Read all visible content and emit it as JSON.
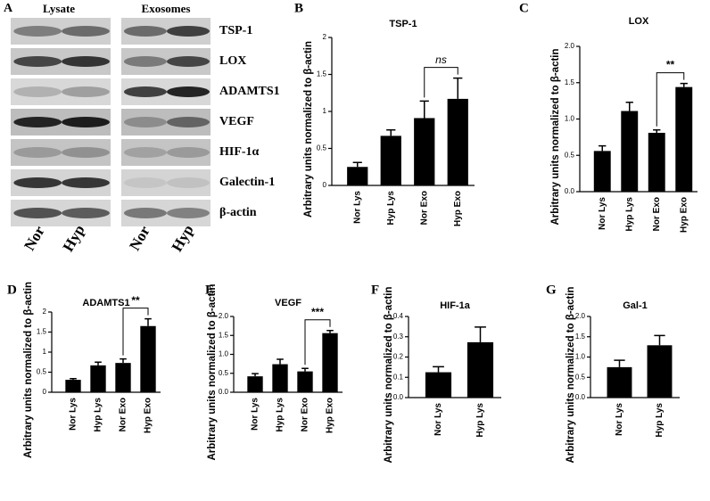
{
  "panel_a": {
    "label": "A",
    "column_headers": [
      "Lysate",
      "Exosomes"
    ],
    "proteins": [
      "TSP-1",
      "LOX",
      "ADAMTS1",
      "VEGF",
      "HIF-1α",
      "Galectin-1",
      "β-actin"
    ],
    "lane_labels": [
      "Nor",
      "Hyp",
      "Nor",
      "Hyp"
    ]
  },
  "chart_data": [
    {
      "type": "bar",
      "panel": "B",
      "title": "TSP-1",
      "y_label": "Arbitrary units normalized to β-actin",
      "categories": [
        "Nor Lys",
        "Hyp Lys",
        "Nor Exo",
        "Hyp Exo"
      ],
      "values": [
        0.25,
        0.67,
        0.91,
        1.17
      ],
      "errors": [
        0.06,
        0.08,
        0.23,
        0.28
      ],
      "color": "#000000",
      "ylim": [
        0,
        2
      ],
      "yticks": [
        0,
        0.5,
        1,
        1.5,
        2
      ],
      "comparison": {
        "label": "ns",
        "between": [
          "Nor Exo",
          "Hyp Exo"
        ],
        "italic": true
      }
    },
    {
      "type": "bar",
      "panel": "C",
      "title": "LOX",
      "y_label": "Arbitrary units normalized to β-actin",
      "categories": [
        "Nor Lys",
        "Hyp Lys",
        "Nor Exo",
        "Hyp Exo"
      ],
      "values": [
        0.56,
        1.11,
        0.81,
        1.44
      ],
      "errors": [
        0.07,
        0.12,
        0.04,
        0.05
      ],
      "color": "#000000",
      "ylim": [
        0,
        2
      ],
      "yticks": [
        {
          "value": 0,
          "label": "0.0"
        },
        {
          "value": 0.5,
          "label": "0.5"
        },
        {
          "value": 1,
          "label": "1.0"
        },
        {
          "value": 1.5,
          "label": "1.5"
        },
        {
          "value": 2,
          "label": "2.0"
        }
      ],
      "comparison": {
        "label": "**",
        "between": [
          "Nor Exo",
          "Hyp Exo"
        ],
        "italic": false
      }
    },
    {
      "type": "bar",
      "panel": "D",
      "title": "ADAMTS1",
      "y_label": "Arbitrary units normalized to β-actin",
      "categories": [
        "Nor Lys",
        "Hyp Lys",
        "Nor Exo",
        "Hyp Exo"
      ],
      "values": [
        0.31,
        0.67,
        0.73,
        1.65
      ],
      "errors": [
        0.03,
        0.08,
        0.1,
        0.18
      ],
      "color": "#000000",
      "ylim": [
        0,
        2
      ],
      "yticks": [
        0,
        0.5,
        1,
        1.5,
        2
      ],
      "comparison": {
        "label": "**",
        "between": [
          "Nor Exo",
          "Hyp Exo"
        ],
        "italic": false
      }
    },
    {
      "type": "bar",
      "panel": "E",
      "title": "VEGF",
      "y_label": "Arbitrary units normalized to β-actin",
      "categories": [
        "Nor Lys",
        "Hyp Lys",
        "Nor Exo",
        "Hyp Exo"
      ],
      "values": [
        0.42,
        0.74,
        0.55,
        1.56
      ],
      "errors": [
        0.07,
        0.13,
        0.08,
        0.07
      ],
      "color": "#000000",
      "ylim": [
        0,
        2
      ],
      "yticks": [
        {
          "value": 0,
          "label": "0.0"
        },
        {
          "value": 0.5,
          "label": "0.5"
        },
        {
          "value": 1,
          "label": "1.0"
        },
        {
          "value": 1.5,
          "label": "1.5"
        },
        {
          "value": 2,
          "label": "2.0"
        }
      ],
      "comparison": {
        "label": "***",
        "between": [
          "Nor Exo",
          "Hyp Exo"
        ],
        "italic": false
      }
    },
    {
      "type": "bar",
      "panel": "F",
      "title": "HIF-1a",
      "y_label": "Arbitrary units normalized to β-actin",
      "categories": [
        "Nor Lys",
        "Hyp Lys"
      ],
      "values": [
        0.125,
        0.273
      ],
      "errors": [
        0.027,
        0.075
      ],
      "color": "#000000",
      "ylim": [
        0,
        0.4
      ],
      "yticks": [
        {
          "value": 0,
          "label": "0.0"
        },
        0.1,
        0.2,
        0.3,
        0.4
      ]
    },
    {
      "type": "bar",
      "panel": "G",
      "title": "Gal-1",
      "y_label": "Arbitrary units normalized to β-actin",
      "categories": [
        "Nor Lys",
        "Hyp Lys"
      ],
      "values": [
        0.75,
        1.29
      ],
      "errors": [
        0.17,
        0.24
      ],
      "color": "#000000",
      "ylim": [
        0,
        2
      ],
      "yticks": [
        {
          "value": 0,
          "label": "0.0"
        },
        {
          "value": 0.5,
          "label": "0.5"
        },
        {
          "value": 1,
          "label": "1.0"
        },
        {
          "value": 1.5,
          "label": "1.5"
        },
        {
          "value": 2,
          "label": "2.0"
        }
      ]
    }
  ]
}
